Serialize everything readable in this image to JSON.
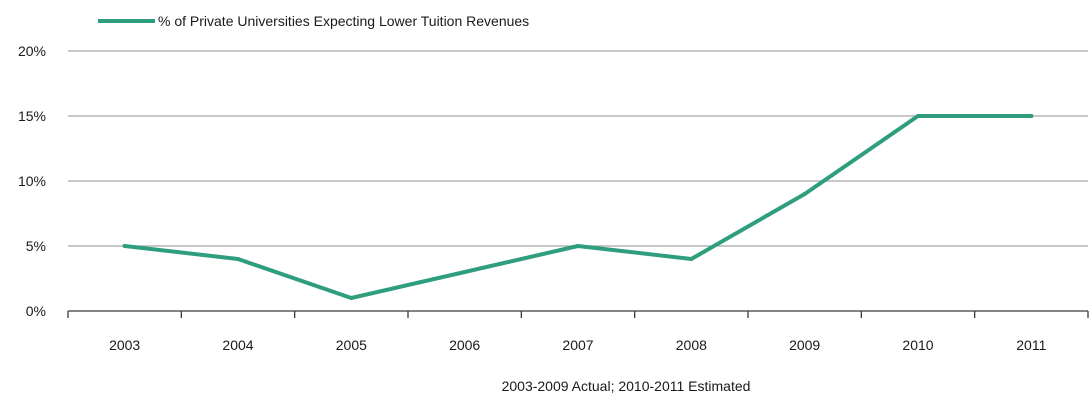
{
  "chart_data": {
    "type": "line",
    "title": "",
    "xlabel": "",
    "ylabel": "",
    "categories": [
      "2003",
      "2004",
      "2005",
      "2006",
      "2007",
      "2008",
      "2009",
      "2010",
      "2011"
    ],
    "series": [
      {
        "name": "% of Private Universities  Expecting Lower Tuition Revenues",
        "values": [
          5,
          4,
          1,
          3,
          5,
          4,
          9,
          15,
          15
        ]
      }
    ],
    "ylim": [
      0,
      20
    ],
    "yticks": [
      0,
      5,
      10,
      15,
      20
    ],
    "ytick_labels": [
      "0%",
      "5%",
      "10%",
      "15%",
      "20%"
    ],
    "grid": true,
    "legend_position": "top-left",
    "note": "2003-2009 Actual; 2010-2011 Estimated"
  },
  "colors": {
    "series": "#2f9e7f",
    "grid": "#a6a6a6",
    "axis": "#3a3a3a"
  }
}
